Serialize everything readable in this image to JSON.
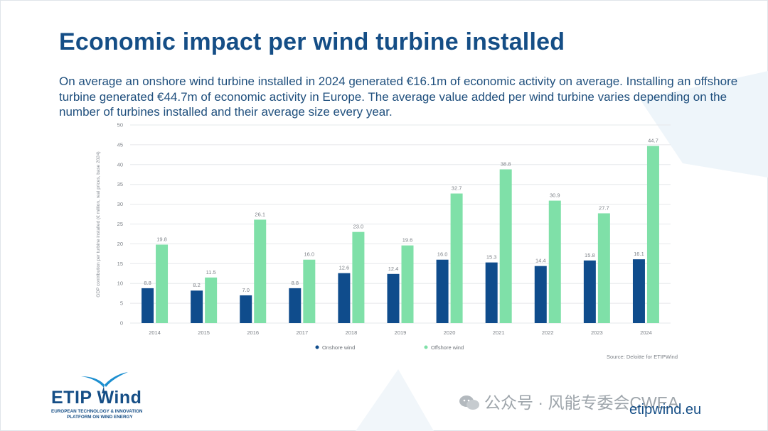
{
  "slide": {
    "title": "Economic impact per wind turbine installed",
    "subtitle": "On average an onshore wind turbine installed in 2024  generated €16.1m of economic activity on average. Installing an offshore turbine generated €44.7m of economic activity in Europe. The average value added per wind turbine varies depending on the number of turbines installed and their average size every year.",
    "logo_main": "ETIP Wind",
    "logo_line1": "EUROPEAN TECHNOLOGY & INNOVATION",
    "logo_line2": "PLATFORM ON WIND ENERGY",
    "watermark": "公众号 · 风能专委会CWEA",
    "website": "etipwind.eu"
  },
  "colors": {
    "title": "#154e86",
    "onshore": "#0f4c8c",
    "offshore": "#7fe0a8",
    "grid": "#e6e8eb"
  },
  "chart_data": {
    "type": "bar",
    "ylabel": "GDP contribution per turbine installed (€ million, real prices, base 2024)",
    "ylim": [
      0,
      50
    ],
    "yticks": [
      "0",
      "5",
      "10",
      "15",
      "20",
      "25",
      "30",
      "35",
      "40",
      "45",
      "50"
    ],
    "categories": [
      "2014",
      "2015",
      "2016",
      "2017",
      "2018",
      "2019",
      "2020",
      "2021",
      "2022",
      "2023",
      "2024"
    ],
    "series": [
      {
        "name": "Onshore wind",
        "values": [
          8.8,
          8.2,
          7.0,
          8.8,
          12.6,
          12.4,
          16.0,
          15.3,
          14.4,
          15.8,
          16.1
        ],
        "labels": [
          "8.8",
          "8.2",
          "7.0",
          "8.8",
          "12.6",
          "12.4",
          "16.0",
          "15.3",
          "14.4",
          "15.8",
          "16.1"
        ]
      },
      {
        "name": "Offshore wind",
        "values": [
          19.8,
          11.5,
          26.1,
          16.0,
          23.0,
          19.6,
          32.7,
          38.8,
          30.9,
          27.7,
          44.7
        ],
        "labels": [
          "19.8",
          "11.5",
          "26.1",
          "16.0",
          "23.0",
          "19.6",
          "32.7",
          "38.8",
          "30.9",
          "27.7",
          "44.7"
        ]
      }
    ],
    "legend_position": "bottom",
    "grid": true,
    "source": "Source: Deloitte for ETIPWind"
  }
}
